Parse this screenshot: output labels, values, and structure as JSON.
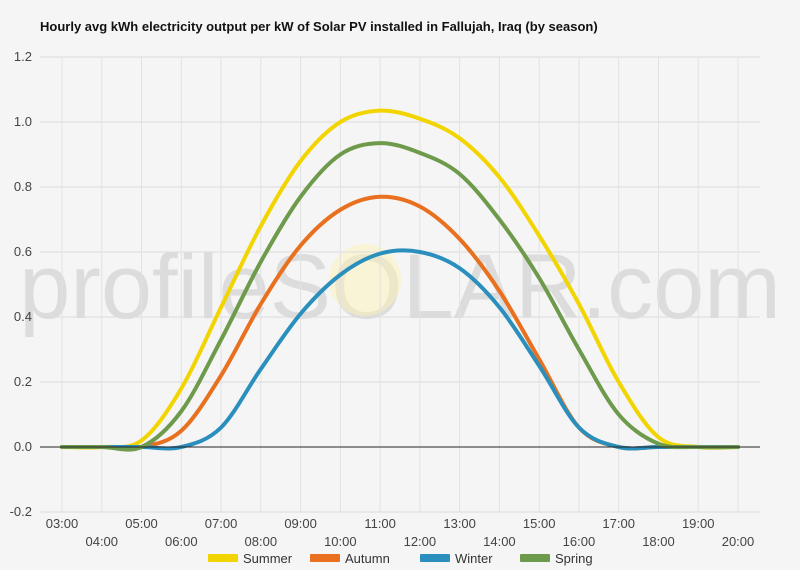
{
  "chart_data": {
    "type": "line",
    "title": "Hourly avg kWh electricity output per kW of Solar PV installed in Fallujah, Iraq (by season)",
    "watermark": "profileSOLAR.com",
    "x": [
      3,
      4,
      5,
      6,
      7,
      8,
      9,
      10,
      11,
      12,
      13,
      14,
      15,
      16,
      17,
      18,
      19,
      20
    ],
    "x_tick_labels": [
      "03:00",
      "04:00",
      "05:00",
      "06:00",
      "07:00",
      "08:00",
      "09:00",
      "10:00",
      "11:00",
      "12:00",
      "13:00",
      "14:00",
      "15:00",
      "16:00",
      "17:00",
      "18:00",
      "19:00",
      "20:00"
    ],
    "y_tick_labels": [
      "-0.2",
      "0.0",
      "0.2",
      "0.4",
      "0.6",
      "0.8",
      "1.0",
      "1.2"
    ],
    "ylim": [
      -0.2,
      1.2
    ],
    "xlim": [
      3,
      20
    ],
    "grid": true,
    "legend_position": "bottom",
    "series": [
      {
        "name": "Summer",
        "color": "#f2d500",
        "values": [
          0,
          0,
          0.02,
          0.18,
          0.43,
          0.68,
          0.88,
          1.0,
          1.035,
          1.01,
          0.95,
          0.83,
          0.65,
          0.44,
          0.2,
          0.03,
          0,
          0
        ]
      },
      {
        "name": "Autumn",
        "color": "#e8701f",
        "values": [
          0,
          0,
          0,
          0.05,
          0.22,
          0.44,
          0.62,
          0.73,
          0.77,
          0.74,
          0.64,
          0.48,
          0.27,
          0.06,
          0,
          0,
          0,
          0
        ]
      },
      {
        "name": "Winter",
        "color": "#2a8fbd",
        "values": [
          0,
          0,
          0,
          0,
          0.06,
          0.24,
          0.41,
          0.53,
          0.595,
          0.6,
          0.55,
          0.43,
          0.25,
          0.06,
          0,
          0,
          0,
          0
        ]
      },
      {
        "name": "Spring",
        "color": "#6e9a4c",
        "values": [
          0,
          0,
          0,
          0.11,
          0.33,
          0.57,
          0.77,
          0.9,
          0.935,
          0.905,
          0.84,
          0.7,
          0.52,
          0.3,
          0.1,
          0.01,
          0,
          0
        ]
      }
    ]
  }
}
